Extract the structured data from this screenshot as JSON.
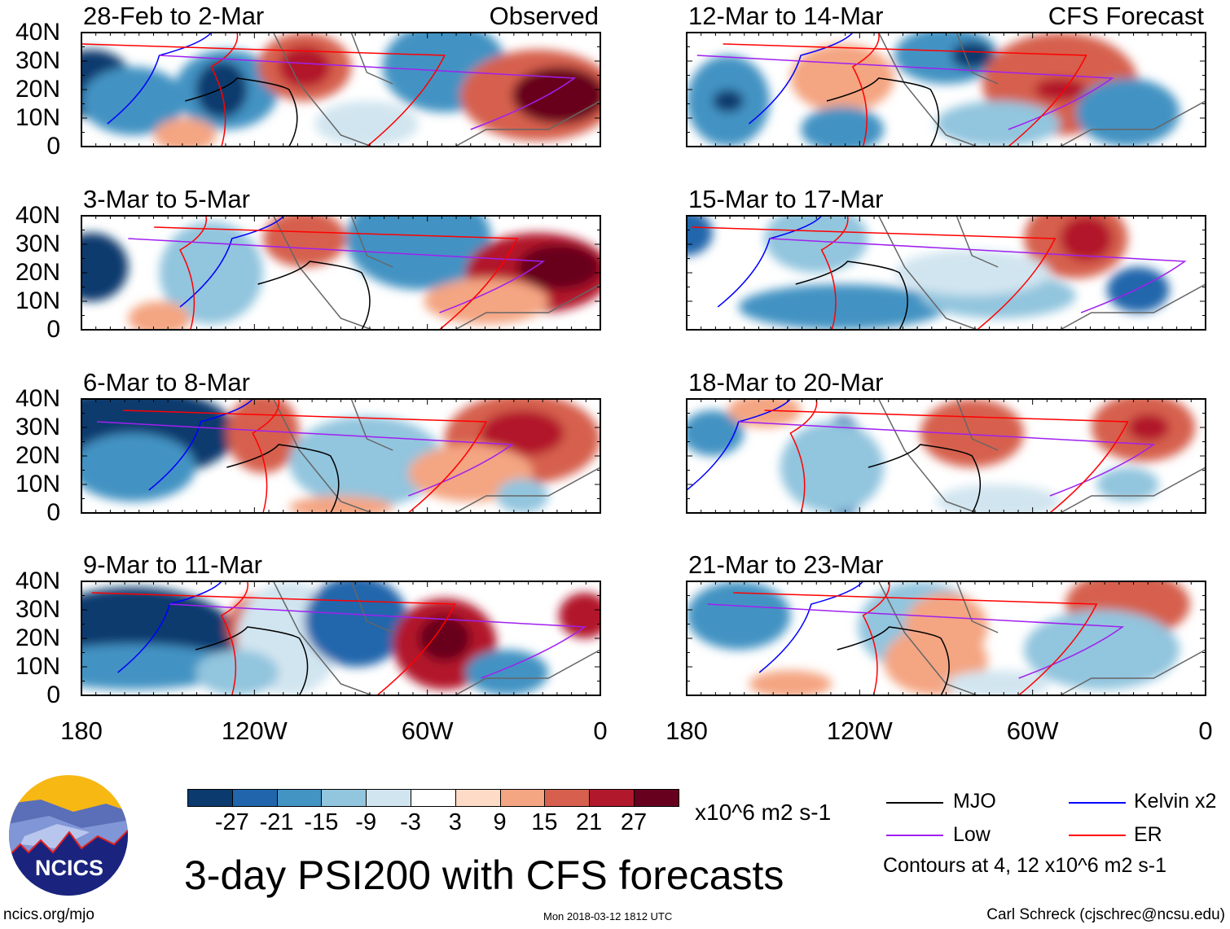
{
  "panels": [
    {
      "title": "28-Feb to 2-Mar",
      "tag": "Observed"
    },
    {
      "title": "12-Mar to 14-Mar",
      "tag": "CFS Forecast"
    },
    {
      "title": "3-Mar to 5-Mar"
    },
    {
      "title": "15-Mar to 17-Mar"
    },
    {
      "title": "6-Mar to 8-Mar"
    },
    {
      "title": "18-Mar to 20-Mar"
    },
    {
      "title": "9-Mar to 11-Mar"
    },
    {
      "title": "21-Mar to 23-Mar"
    }
  ],
  "y_ticks": [
    "40N",
    "30N",
    "20N",
    "10N",
    "0"
  ],
  "x_ticks": [
    "180",
    "120W",
    "60W",
    "0"
  ],
  "colorbar": {
    "colors": [
      "#0a3a6e",
      "#2166ac",
      "#4393c3",
      "#92c5de",
      "#d1e5f0",
      "#ffffff",
      "#fddbc7",
      "#f4a582",
      "#d6604d",
      "#b2182b",
      "#67001f"
    ],
    "labels": [
      "-27",
      "-21",
      "-15",
      "-9",
      "-3",
      "3",
      "9",
      "15",
      "21",
      "27"
    ],
    "units": "x10^6 m2 s-1"
  },
  "legend": {
    "items": [
      {
        "label": "MJO",
        "color": "#000000"
      },
      {
        "label": "Kelvin x2",
        "color": "#0000ff"
      },
      {
        "label": "Low",
        "color": "#a020f0"
      },
      {
        "label": "ER",
        "color": "#ff0000"
      }
    ],
    "note": "Contours at 4, 12 x10^6 m2 s-1"
  },
  "title": "3-day PSI200 with CFS forecasts",
  "logo_text": "NCICS",
  "footer": {
    "left": "ncics.org/mjo",
    "center": "Mon 2018-03-12 1812 UTC",
    "right": "Carl Schreck (cjschrec@ncsu.edu)"
  }
}
